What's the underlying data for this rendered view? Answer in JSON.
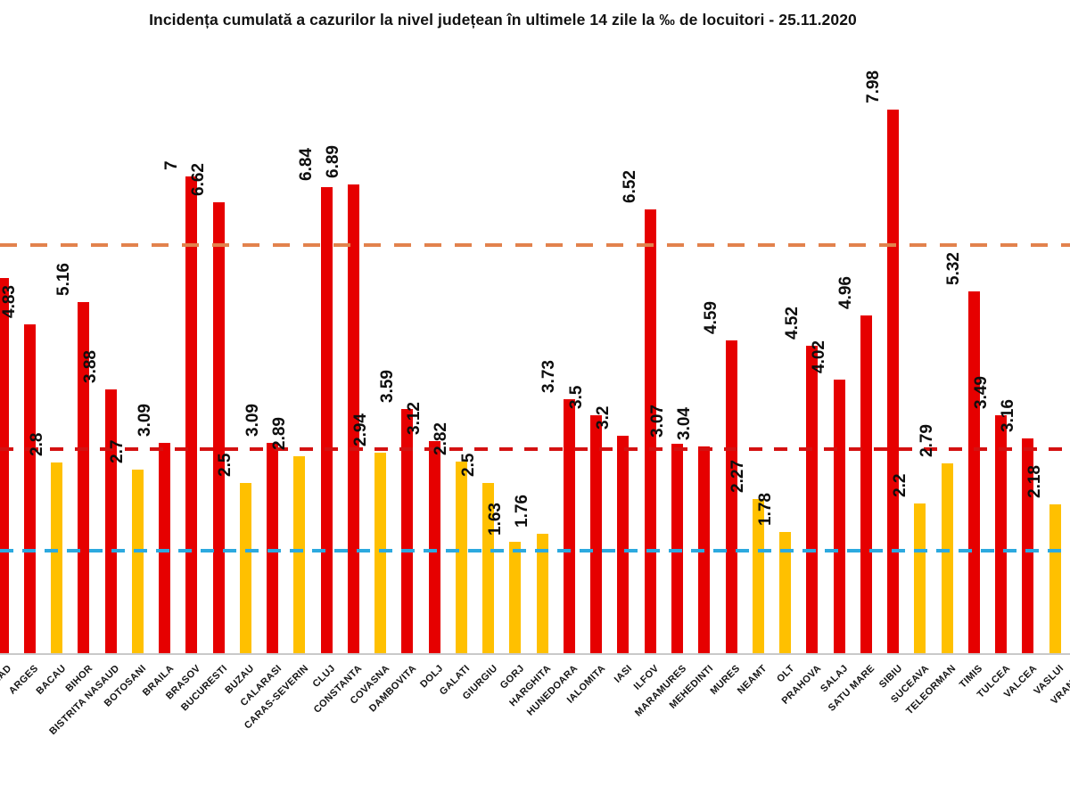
{
  "chart_data": {
    "type": "bar",
    "title": "Incidența cumulată a cazurilor la nivel județean în ultimele 14 zile la ‰ de locuitori - 25.11.2020",
    "xlabel": "",
    "ylabel": "",
    "ylim": [
      0,
      8.8
    ],
    "grid": false,
    "legend": false,
    "bar_colors": {
      "red": "#e60000",
      "yellow": "#ffc000"
    },
    "axis_line_color": "#c9c9c9",
    "thresholds": [
      {
        "value": 6,
        "color": "#e2824d",
        "style": "dashed"
      },
      {
        "value": 3,
        "color": "#d41111",
        "style": "dashed"
      },
      {
        "value": 1.5,
        "color": "#2ca9df",
        "style": "dashed"
      }
    ],
    "counties": [
      {
        "name": "ARAD",
        "value": "5.51",
        "color": "red"
      },
      {
        "name": "ARGES",
        "value": "4.83",
        "color": "red"
      },
      {
        "name": "BACAU",
        "value": "2.8",
        "color": "yellow"
      },
      {
        "name": "BIHOR",
        "value": "5.16",
        "color": "red"
      },
      {
        "name": "BISTRITA NASAUD",
        "value": "3.88",
        "color": "red"
      },
      {
        "name": "BOTOSANI",
        "value": "2.7",
        "color": "yellow"
      },
      {
        "name": "BRAILA",
        "value": "3.09",
        "color": "red"
      },
      {
        "name": "BRASOV",
        "value": "7",
        "color": "red"
      },
      {
        "name": "BUCURESTI",
        "value": "6.62",
        "color": "red"
      },
      {
        "name": "BUZAU",
        "value": "2.5",
        "color": "yellow"
      },
      {
        "name": "CALARASI",
        "value": "3.09",
        "color": "red"
      },
      {
        "name": "CARAS-SEVERIN",
        "value": "2.89",
        "color": "yellow"
      },
      {
        "name": "CLUJ",
        "value": "6.84",
        "color": "red"
      },
      {
        "name": "CONSTANTA",
        "value": "6.89",
        "color": "red"
      },
      {
        "name": "COVASNA",
        "value": "2.94",
        "color": "yellow"
      },
      {
        "name": "DAMBOVITA",
        "value": "3.59",
        "color": "red"
      },
      {
        "name": "DOLJ",
        "value": "3.12",
        "color": "red"
      },
      {
        "name": "GALATI",
        "value": "2.82",
        "color": "yellow"
      },
      {
        "name": "GIURGIU",
        "value": "2.5",
        "color": "yellow"
      },
      {
        "name": "GORJ",
        "value": "1.63",
        "color": "yellow"
      },
      {
        "name": "HARGHITA",
        "value": "1.76",
        "color": "yellow"
      },
      {
        "name": "HUNEDOARA",
        "value": "3.73",
        "color": "red"
      },
      {
        "name": "IALOMITA",
        "value": "3.5",
        "color": "red"
      },
      {
        "name": "IASI",
        "value": "3.2",
        "color": "red"
      },
      {
        "name": "ILFOV",
        "value": "6.52",
        "color": "red"
      },
      {
        "name": "MARAMURES",
        "value": "3.07",
        "color": "red"
      },
      {
        "name": "MEHEDINTI",
        "value": "3.04",
        "color": "red"
      },
      {
        "name": "MURES",
        "value": "4.59",
        "color": "red"
      },
      {
        "name": "NEAMT",
        "value": "2.27",
        "color": "yellow"
      },
      {
        "name": "OLT",
        "value": "1.78",
        "color": "yellow"
      },
      {
        "name": "PRAHOVA",
        "value": "4.52",
        "color": "red"
      },
      {
        "name": "SALAJ",
        "value": "4.02",
        "color": "red"
      },
      {
        "name": "SATU MARE",
        "value": "4.96",
        "color": "red"
      },
      {
        "name": "SIBIU",
        "value": "7.98",
        "color": "red"
      },
      {
        "name": "SUCEAVA",
        "value": "2.2",
        "color": "yellow"
      },
      {
        "name": "TELEORMAN",
        "value": "2.79",
        "color": "yellow"
      },
      {
        "name": "TIMIS",
        "value": "5.32",
        "color": "red"
      },
      {
        "name": "TULCEA",
        "value": "3.49",
        "color": "red"
      },
      {
        "name": "VALCEA",
        "value": "3.16",
        "color": "red"
      },
      {
        "name": "VASLUI",
        "value": "2.18",
        "color": "yellow"
      },
      {
        "name": "VRANCEA",
        "value": null,
        "color": null
      }
    ]
  }
}
